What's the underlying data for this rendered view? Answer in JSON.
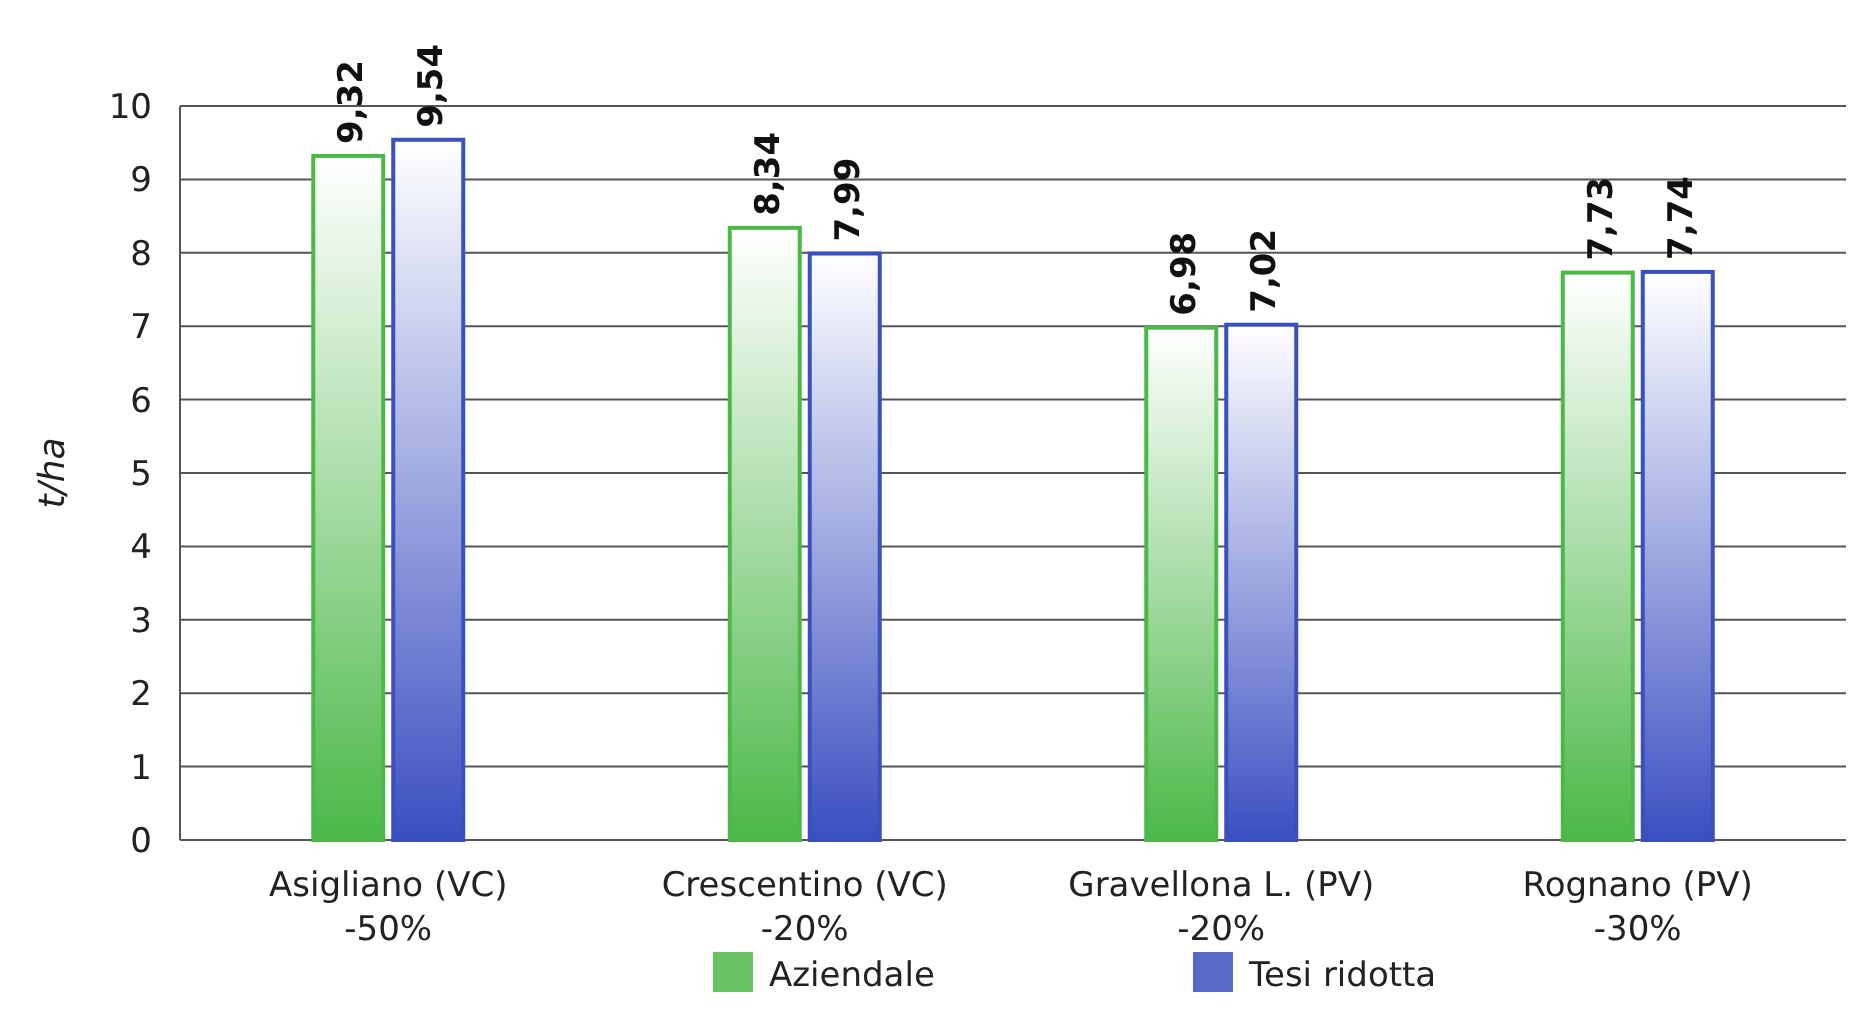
{
  "chart_data": {
    "type": "bar",
    "ylabel": "t/ha",
    "categories": [
      "Asigliano (VC)\n-50%",
      "Crescentino (VC)\n-20%",
      "Gravellona L. (PV)\n-20%",
      "Rognano (PV)\n-30%"
    ],
    "series": [
      {
        "name": "Aziendale",
        "color": "#4cb848",
        "values": [
          9.32,
          8.34,
          6.98,
          7.73
        ],
        "value_labels": [
          "9,32",
          "8,34",
          "6,98",
          "7,73"
        ]
      },
      {
        "name": "Tesi ridotta",
        "color": "#3a4fc0",
        "values": [
          9.54,
          7.99,
          7.02,
          7.74
        ],
        "value_labels": [
          "9,54",
          "7,99",
          "7,02",
          "7,74"
        ]
      }
    ],
    "ylim": [
      0,
      10
    ],
    "yticks": [
      0,
      1,
      2,
      3,
      4,
      5,
      6,
      7,
      8,
      9,
      10
    ],
    "grid": "y",
    "legend": "bottom"
  }
}
